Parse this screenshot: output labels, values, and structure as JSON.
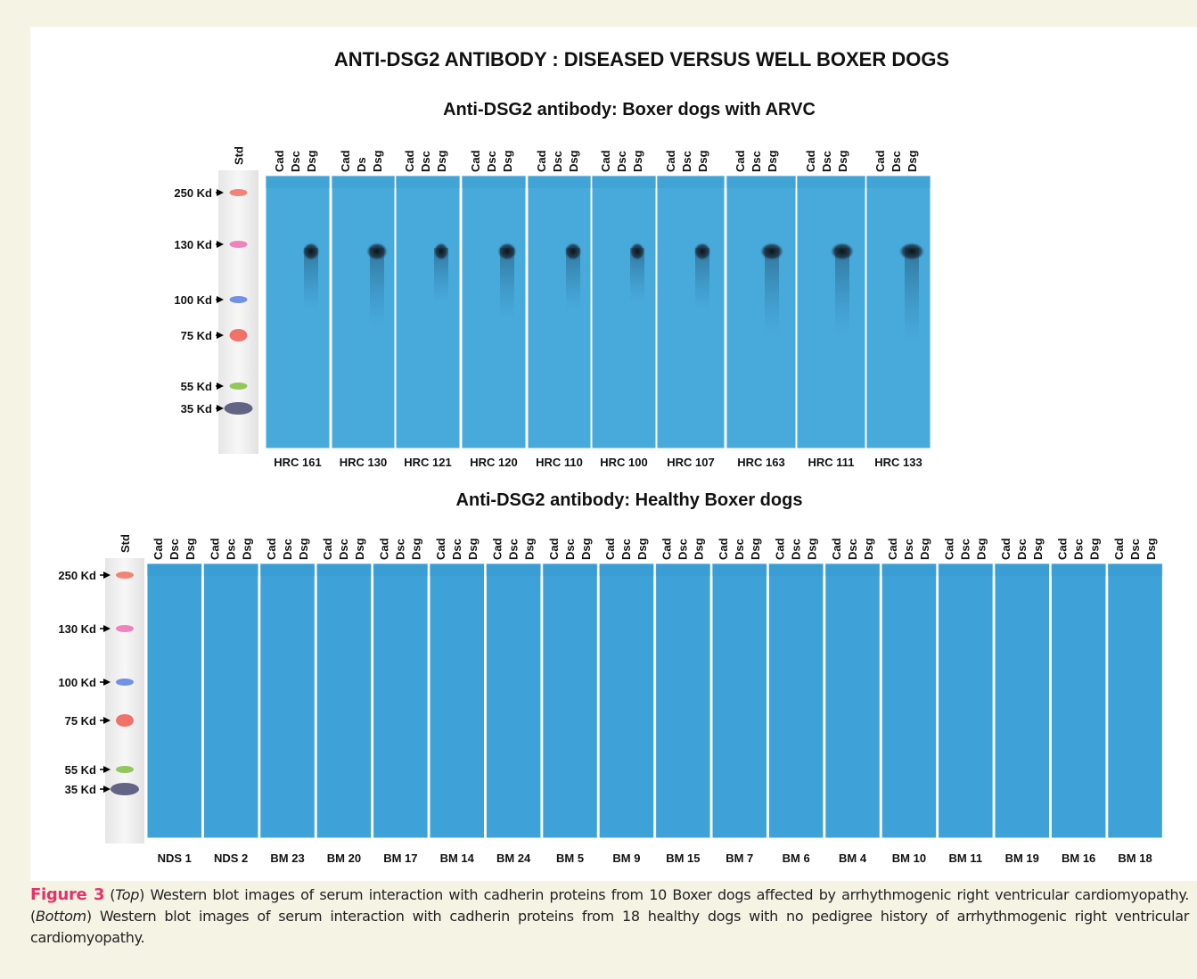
{
  "figure": {
    "title": "ANTI-DSG2 ANTIBODY : DISEASED VERSUS WELL BOXER DOGS",
    "top": {
      "title": "Anti-DSG2 antibody: Boxer dogs with ARVC",
      "std": "Std",
      "markers": [
        "250 Kd",
        "130 Kd",
        "100 Kd",
        "75 Kd",
        "55 Kd",
        "35 Kd"
      ],
      "blots": [
        {
          "lanes": [
            "Cad",
            "Dsc",
            "Dsg"
          ],
          "sample": "HRC 161"
        },
        {
          "lanes": [
            "Cad",
            "Ds",
            "Dsg"
          ],
          "sample": "HRC 130"
        },
        {
          "lanes": [
            "Cad",
            "Dsc",
            "Dsg"
          ],
          "sample": "HRC 121"
        },
        {
          "lanes": [
            "Cad",
            "Dsc",
            "Dsg"
          ],
          "sample": "HRC 120"
        },
        {
          "lanes": [
            "Cad",
            "Dsc",
            "Dsg"
          ],
          "sample": "HRC 110"
        },
        {
          "lanes": [
            "Cad",
            "Dsc",
            "Dsg"
          ],
          "sample": "HRC 100"
        },
        {
          "lanes": [
            "Cad",
            "Dsc",
            "Dsg"
          ],
          "sample": "HRC 107"
        },
        {
          "lanes": [
            "Cad",
            "Dsc",
            "Dsg"
          ],
          "sample": "HRC 163"
        },
        {
          "lanes": [
            "Cad",
            "Dsc",
            "Dsg"
          ],
          "sample": "HRC 111"
        },
        {
          "lanes": [
            "Cad",
            "Dsc",
            "Dsg"
          ],
          "sample": "HRC 133"
        }
      ]
    },
    "bottom": {
      "title": "Anti-DSG2 antibody: Healthy Boxer dogs",
      "std": "Std",
      "markers": [
        "250 Kd",
        "130 Kd",
        "100 Kd",
        "75 Kd",
        "55 Kd",
        "35 Kd"
      ],
      "blots": [
        {
          "lanes": [
            "Cad",
            "Dsc",
            "Dsg"
          ],
          "sample": "NDS 1"
        },
        {
          "lanes": [
            "Cad",
            "Dsc",
            "Dsg"
          ],
          "sample": "NDS 2"
        },
        {
          "lanes": [
            "Cad",
            "Dsc",
            "Dsg"
          ],
          "sample": "BM 23"
        },
        {
          "lanes": [
            "Cad",
            "Dsc",
            "Dsg"
          ],
          "sample": "BM 20"
        },
        {
          "lanes": [
            "Cad",
            "Dsc",
            "Dsg"
          ],
          "sample": "BM 17"
        },
        {
          "lanes": [
            "Cad",
            "Dsc",
            "Dsg"
          ],
          "sample": "BM 14"
        },
        {
          "lanes": [
            "Cad",
            "Dsc",
            "Dsg"
          ],
          "sample": "BM 24"
        },
        {
          "lanes": [
            "Cad",
            "Dsc",
            "Dsg"
          ],
          "sample": "BM 5"
        },
        {
          "lanes": [
            "Cad",
            "Dsc",
            "Dsg"
          ],
          "sample": "BM 9"
        },
        {
          "lanes": [
            "Cad",
            "Dsc",
            "Dsg"
          ],
          "sample": "BM 15"
        },
        {
          "lanes": [
            "Cad",
            "Dsc",
            "Dsg"
          ],
          "sample": "BM 7"
        },
        {
          "lanes": [
            "Cad",
            "Dsc",
            "Dsg"
          ],
          "sample": "BM 6"
        },
        {
          "lanes": [
            "Cad",
            "Dsc",
            "Dsg"
          ],
          "sample": "BM 4"
        },
        {
          "lanes": [
            "Cad",
            "Dsc",
            "Dsg"
          ],
          "sample": "BM 10"
        },
        {
          "lanes": [
            "Cad",
            "Dsc",
            "Dsg"
          ],
          "sample": "BM 11"
        },
        {
          "lanes": [
            "Cad",
            "Dsc",
            "Dsg"
          ],
          "sample": "BM 19"
        },
        {
          "lanes": [
            "Cad",
            "Dsc",
            "Dsg"
          ],
          "sample": "BM 16"
        },
        {
          "lanes": [
            "Cad",
            "Dsc",
            "Dsg"
          ],
          "sample": "BM 18"
        }
      ]
    },
    "caption": {
      "label": "Figure 3",
      "parts": [
        "(",
        "Top",
        ") Western blot images of serum interaction with cadherin proteins from 10 Boxer dogs affected by arrhythmogenic right ventricular cardiomyopathy. (",
        "Bottom",
        ") Western blot images of serum interaction with cadherin proteins from 18 healthy dogs with no pedigree history of arrhythmogenic right ventricular cardiomyopathy."
      ]
    }
  }
}
